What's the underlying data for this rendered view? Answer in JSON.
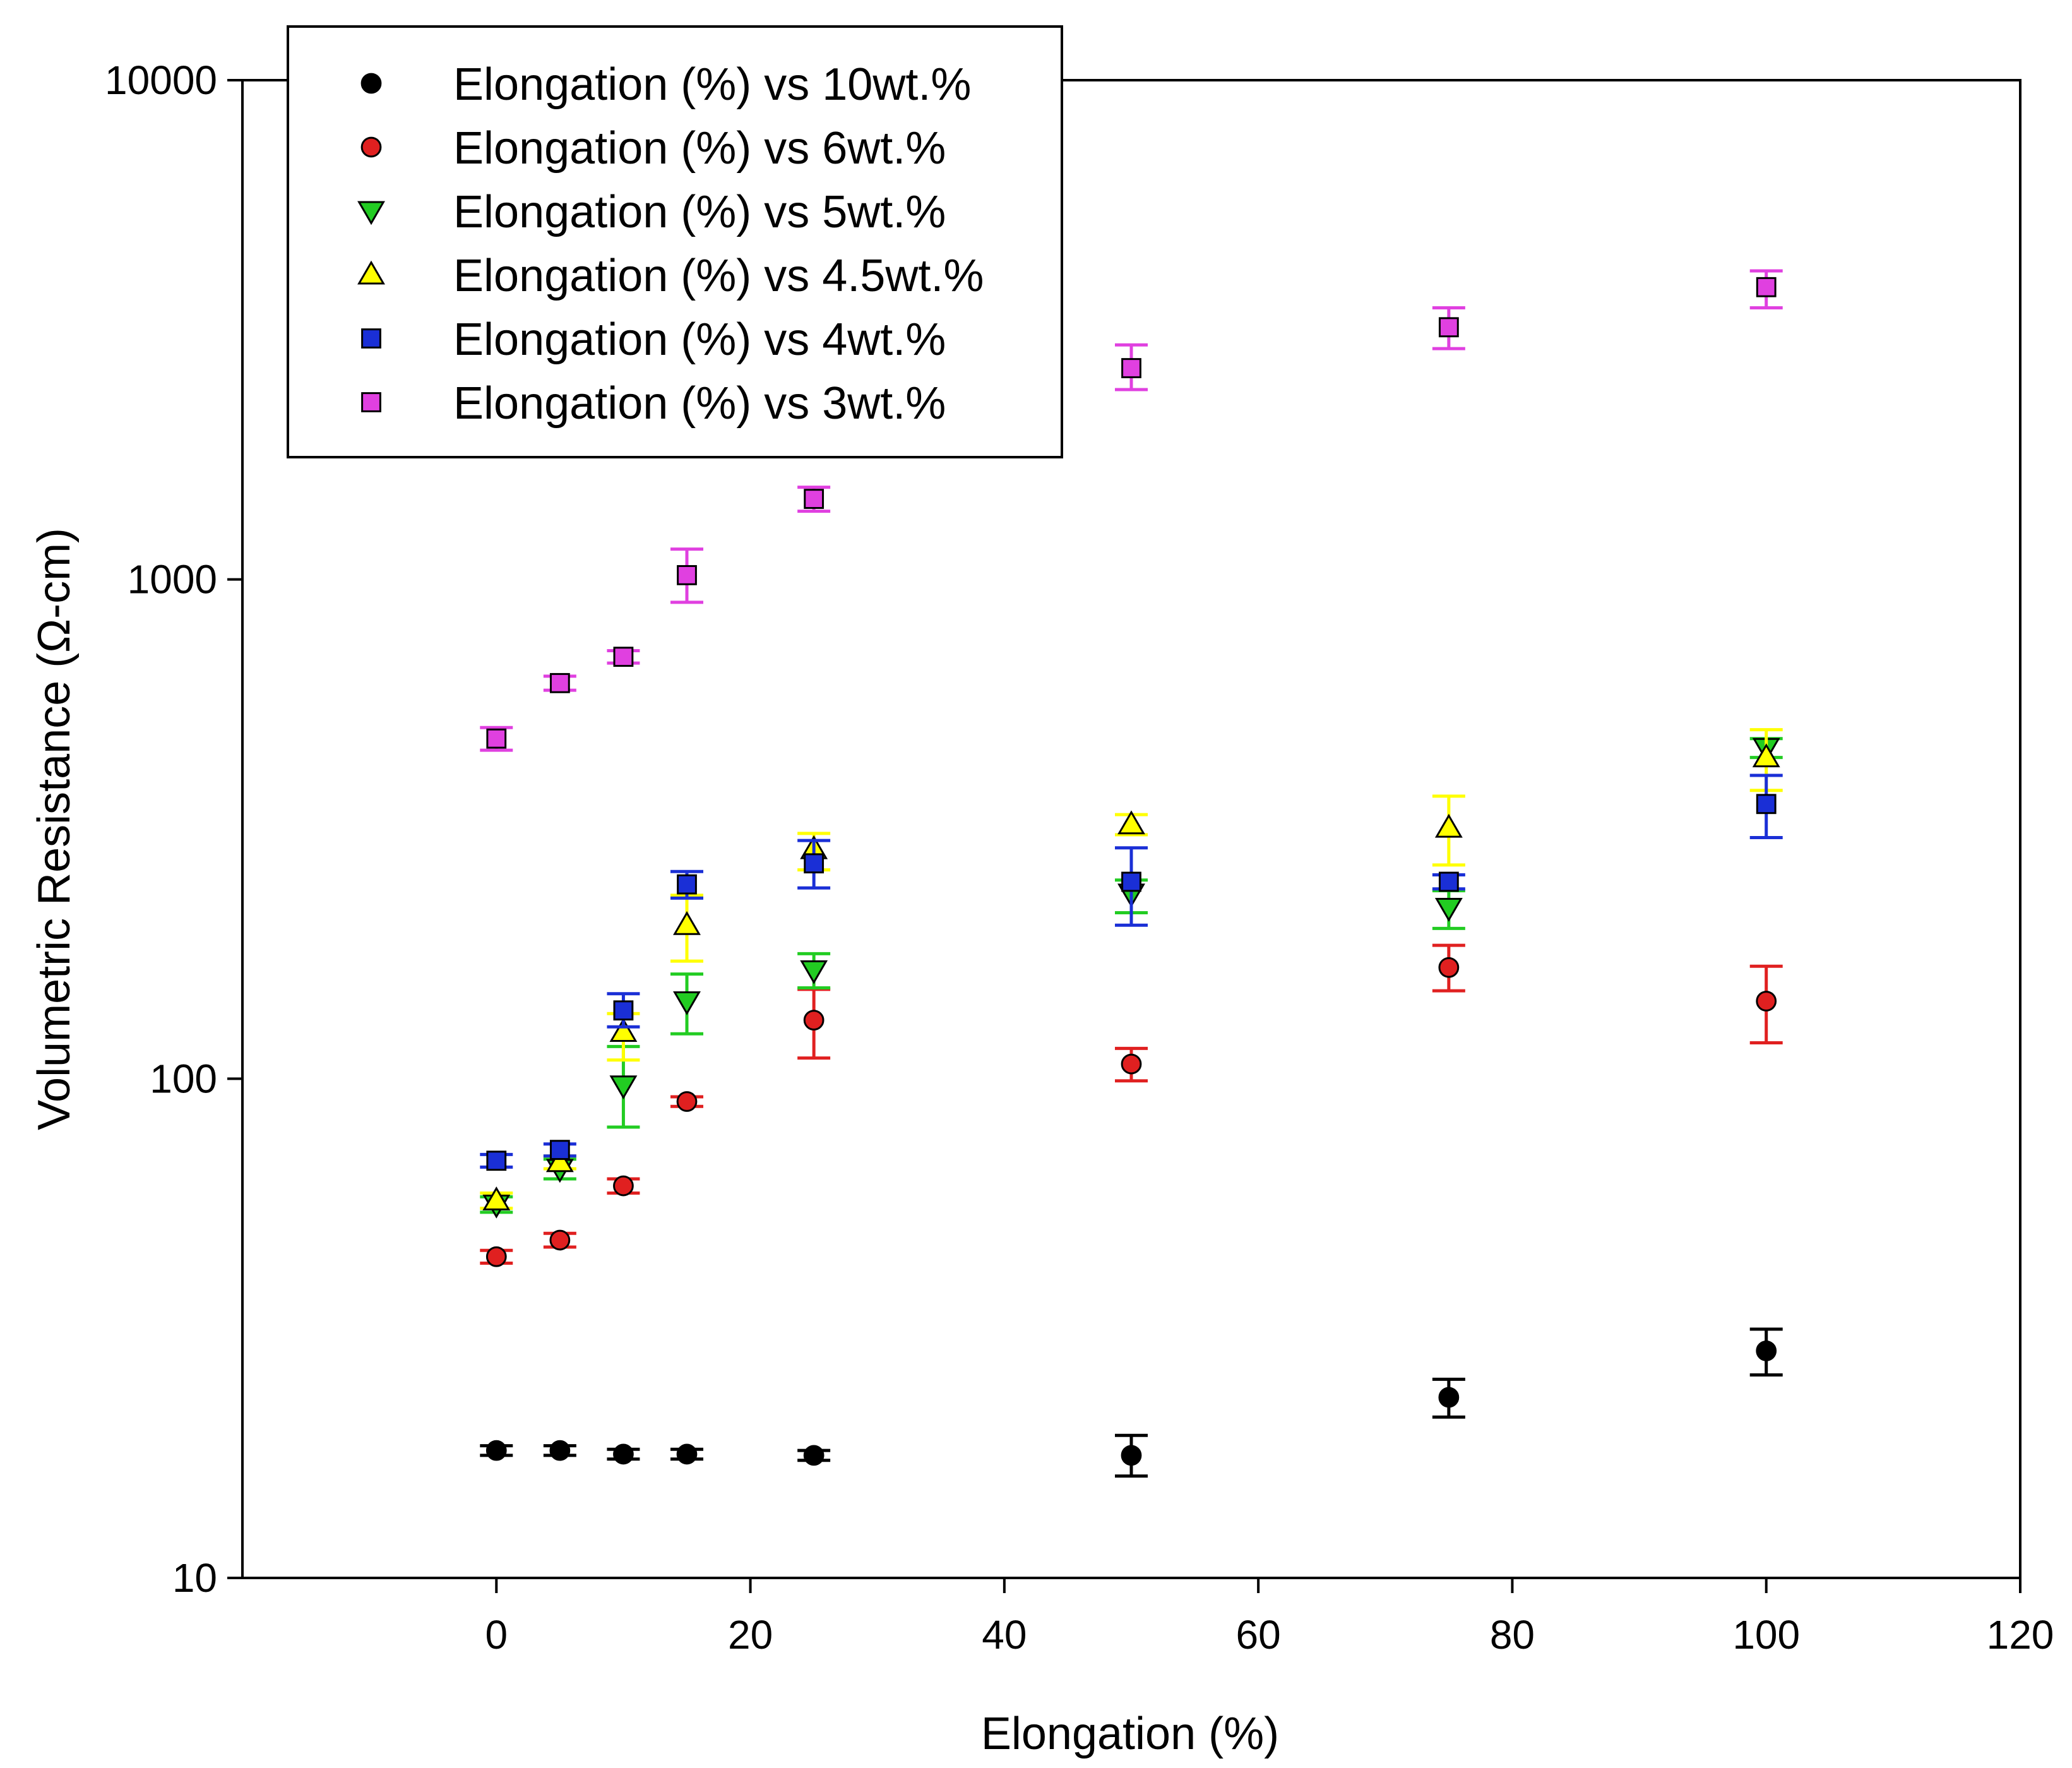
{
  "chart_data": {
    "type": "scatter",
    "xlabel": "Elongation (%)",
    "ylabel": "Volumetric Resistance (Ω-cm)",
    "xlim": [
      -20,
      120
    ],
    "ylim": [
      10,
      10000
    ],
    "yscale": "log",
    "grid": false,
    "legend_position": "top-left",
    "x_ticks": [
      0,
      20,
      40,
      60,
      80,
      100,
      120
    ],
    "x_tick_labels": [
      "0",
      "20",
      "40",
      "60",
      "80",
      "100",
      "120"
    ],
    "y_ticks": [
      10,
      100,
      1000,
      10000
    ],
    "y_tick_labels": [
      "10",
      "100",
      "1000",
      "10000"
    ],
    "series": [
      {
        "name": "Elongation (%) vs 10wt.%",
        "marker": "circle",
        "color": "#000000",
        "error_color": "#000000",
        "x": [
          0,
          5,
          10,
          15,
          25,
          50,
          75,
          100
        ],
        "y": [
          18,
          18,
          17.7,
          17.7,
          17.6,
          17.6,
          23,
          28.5
        ],
        "err_low": [
          17.6,
          17.6,
          17.3,
          17.3,
          17.2,
          16,
          21,
          25.5
        ],
        "err_high": [
          18.4,
          18.4,
          18.1,
          18.1,
          18,
          19.3,
          25,
          31.5
        ]
      },
      {
        "name": "Elongation (%) vs 6wt.%",
        "marker": "circle",
        "color": "#e02020",
        "error_color": "#e02020",
        "x": [
          0,
          5,
          10,
          15,
          25,
          50,
          75,
          100
        ],
        "y": [
          44,
          47.5,
          61,
          90,
          131,
          107,
          167,
          143
        ],
        "err_low": [
          42.7,
          46,
          59,
          88,
          110,
          99,
          150,
          118
        ],
        "err_high": [
          45.3,
          49,
          63,
          92,
          151,
          115,
          185,
          168
        ]
      },
      {
        "name": "Elongation (%) vs 5wt.%",
        "marker": "triangle-down",
        "color": "#22cc22",
        "error_color": "#22cc22",
        "x": [
          0,
          5,
          10,
          15,
          25,
          50,
          75,
          100
        ],
        "y": [
          56,
          66,
          97,
          143,
          165,
          235,
          220,
          460
        ],
        "err_low": [
          54,
          63,
          80,
          123,
          152,
          215,
          200,
          440
        ],
        "err_high": [
          58,
          69,
          116,
          162,
          178,
          250,
          238,
          480
        ]
      },
      {
        "name": "Elongation (%) vs 4.5wt.%",
        "marker": "triangle-up",
        "color": "#ffff00",
        "error_color": "#ffff00",
        "x": [
          0,
          5,
          10,
          15,
          25,
          50,
          75,
          100
        ],
        "y": [
          57,
          68,
          124,
          203,
          288,
          323,
          318,
          440
        ],
        "err_low": [
          55,
          66,
          109,
          172,
          262,
          308,
          268,
          378
        ],
        "err_high": [
          59,
          70,
          135,
          233,
          310,
          338,
          368,
          500
        ]
      },
      {
        "name": "Elongation (%) vs 4wt.%",
        "marker": "square",
        "color": "#1a2fd6",
        "error_color": "#1a2fd6",
        "x": [
          0,
          5,
          10,
          15,
          25,
          50,
          75,
          100
        ],
        "y": [
          68.5,
          72,
          137,
          245,
          270,
          248,
          248,
          355
        ],
        "err_low": [
          66.5,
          70,
          127,
          230,
          241,
          203,
          240,
          304
        ],
        "err_high": [
          70.5,
          74,
          148,
          260,
          300,
          290,
          256,
          405
        ]
      },
      {
        "name": "Elongation (%) vs 3wt.%",
        "marker": "square",
        "color": "#e040e0",
        "error_color": "#e040e0",
        "x": [
          0,
          5,
          10,
          15,
          25,
          50,
          75,
          100
        ],
        "y": [
          480,
          620,
          700,
          1020,
          1450,
          2650,
          3200,
          3850
        ],
        "err_low": [
          455,
          600,
          680,
          900,
          1370,
          2400,
          2900,
          3500
        ],
        "err_high": [
          505,
          640,
          720,
          1150,
          1530,
          2950,
          3500,
          4150
        ]
      }
    ]
  }
}
